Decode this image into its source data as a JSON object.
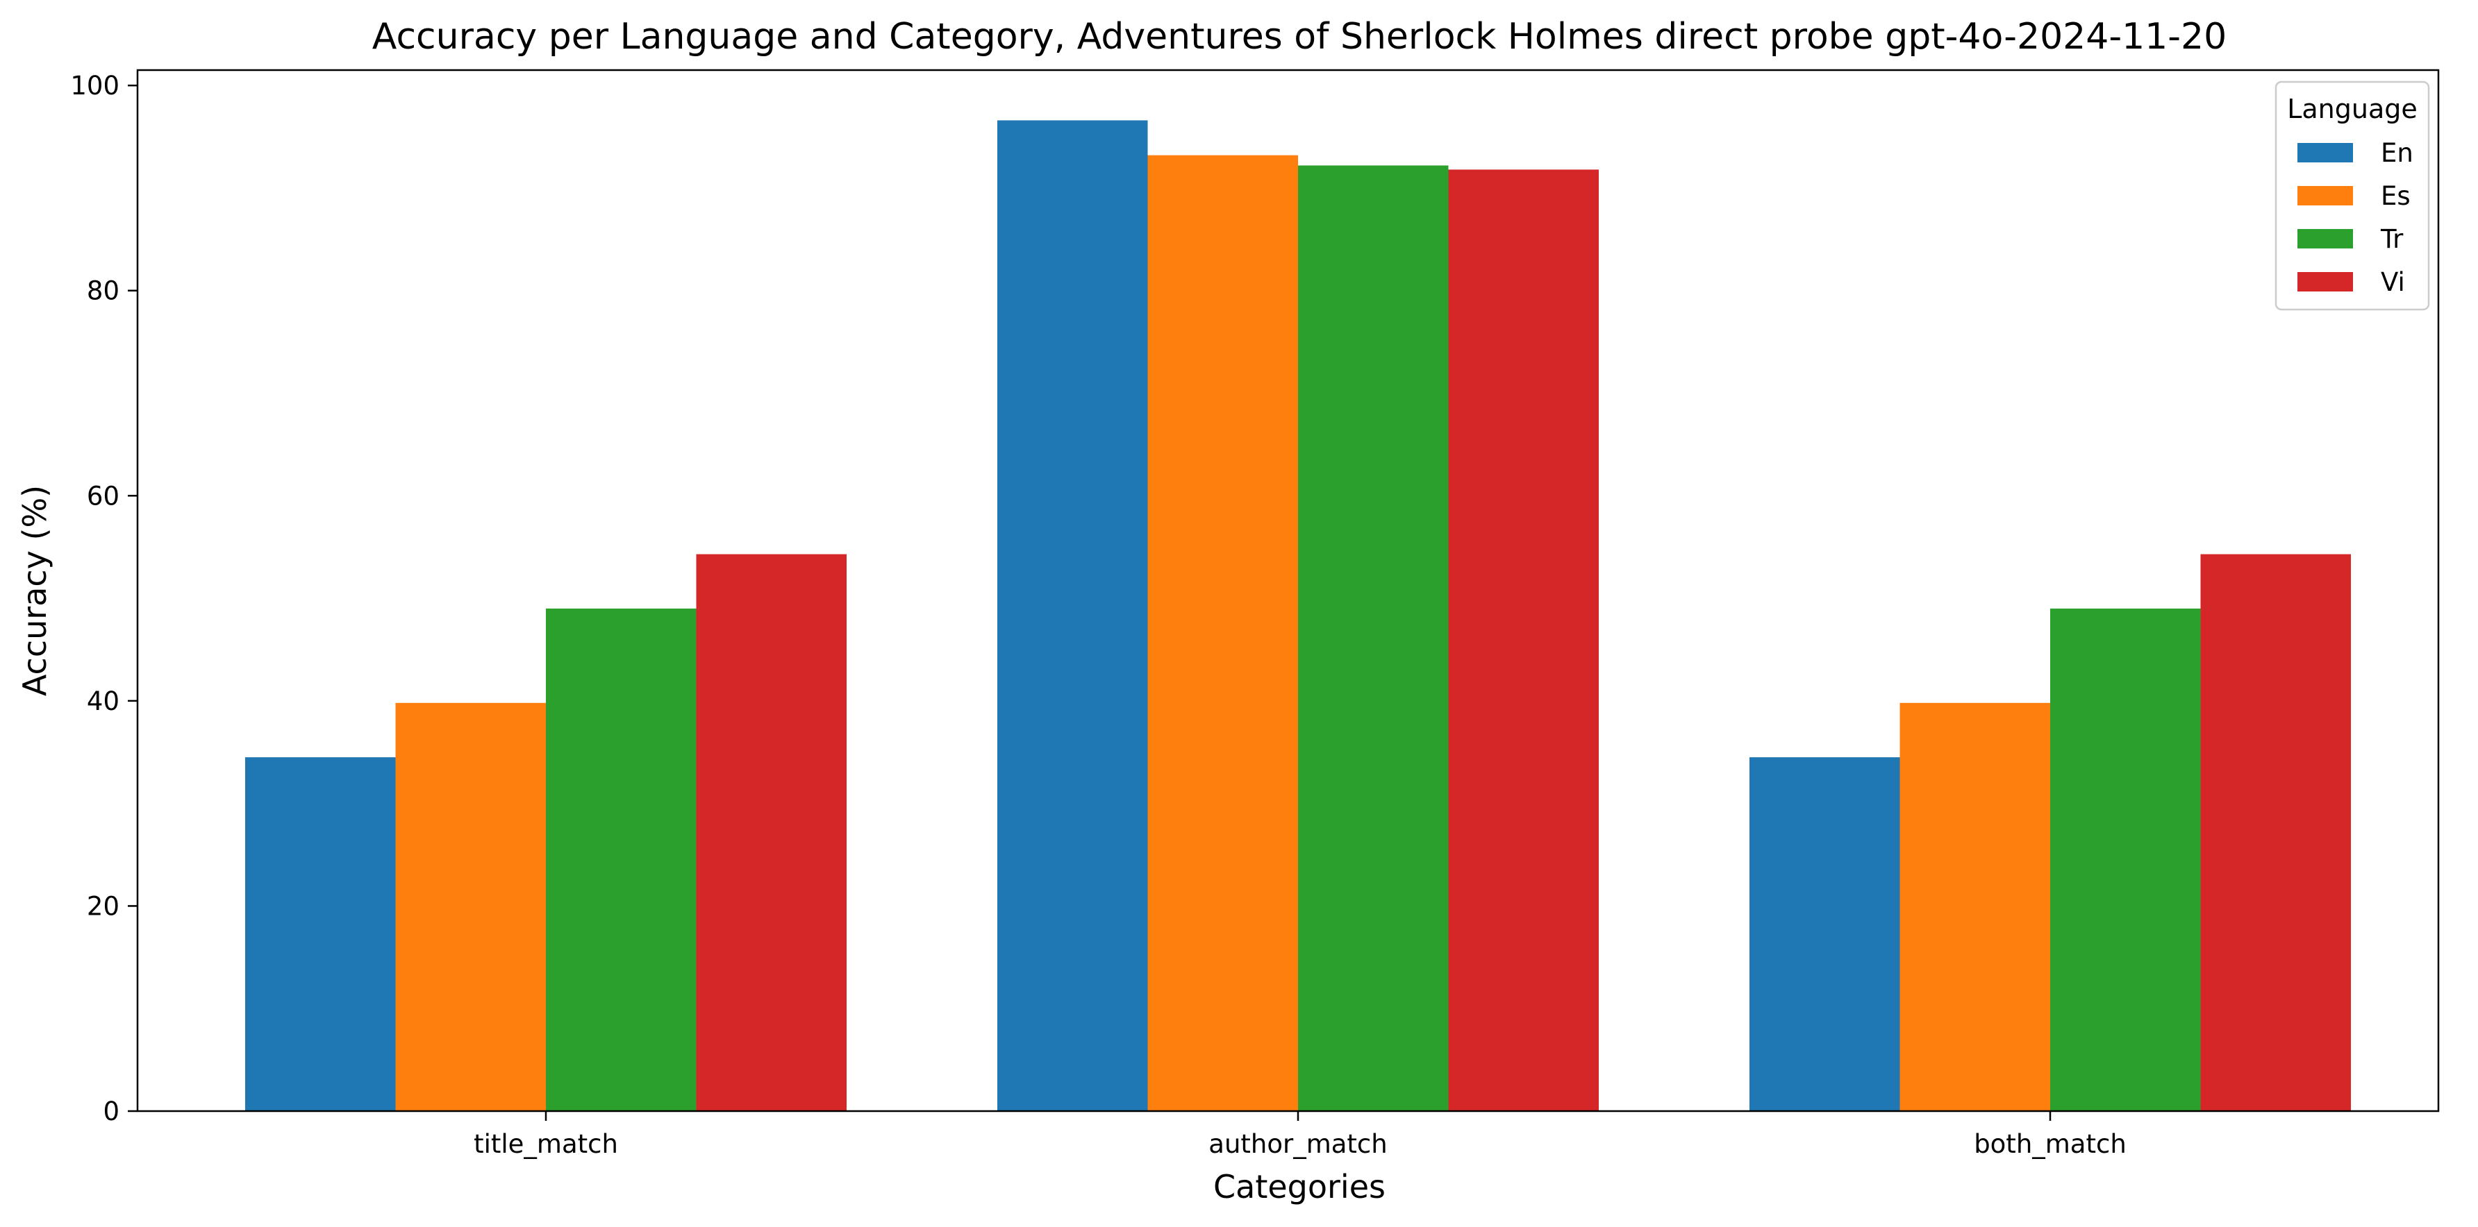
{
  "chart_data": {
    "type": "bar",
    "title": "Accuracy per Language and Category, Adventures of Sherlock Holmes direct probe gpt-4o-2024-11-20",
    "xlabel": "Categories",
    "ylabel": "Accuracy (%)",
    "ylim": [
      0,
      101.5
    ],
    "yticks": [
      0,
      20,
      40,
      60,
      80,
      100
    ],
    "categories": [
      "title_match",
      "author_match",
      "both_match"
    ],
    "series": [
      {
        "name": "En",
        "color": "#1f77b4",
        "values": [
          34.5,
          96.6,
          34.5
        ]
      },
      {
        "name": "Es",
        "color": "#ff7f0e",
        "values": [
          39.8,
          93.2,
          39.8
        ]
      },
      {
        "name": "Tr",
        "color": "#2ca02c",
        "values": [
          49.0,
          92.2,
          49.0
        ]
      },
      {
        "name": "Vi",
        "color": "#d62728",
        "values": [
          54.3,
          91.8,
          54.3
        ]
      }
    ],
    "grid": false,
    "legend": {
      "title": "Language",
      "placement": "top-right"
    }
  }
}
